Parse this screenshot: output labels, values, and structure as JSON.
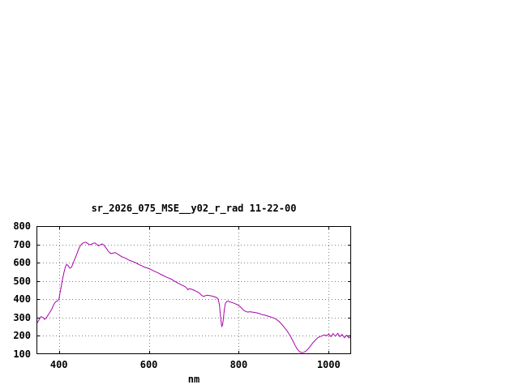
{
  "chart_data": {
    "type": "line",
    "title": "sr_2026_075_MSE__y02_r_rad 11-22-00",
    "xlabel": "nm",
    "ylabel": "",
    "xlim": [
      350,
      1050
    ],
    "ylim": [
      100,
      800
    ],
    "xticks": [
      400,
      600,
      800,
      1000
    ],
    "yticks": [
      100,
      200,
      300,
      400,
      500,
      600,
      700,
      800
    ],
    "grid": true,
    "legend": "none",
    "line_color": "#aa00aa",
    "grid_color": "#808080",
    "frame_color": "#000000",
    "x": [
      350,
      355,
      360,
      365,
      368,
      372,
      376,
      380,
      384,
      388,
      392,
      396,
      400,
      402,
      405,
      408,
      411,
      414,
      417,
      420,
      424,
      428,
      432,
      436,
      440,
      444,
      448,
      452,
      456,
      460,
      464,
      468,
      472,
      476,
      480,
      484,
      488,
      492,
      496,
      500,
      505,
      510,
      515,
      520,
      525,
      530,
      535,
      540,
      545,
      550,
      555,
      560,
      565,
      570,
      575,
      580,
      585,
      590,
      595,
      600,
      605,
      610,
      615,
      620,
      625,
      630,
      635,
      640,
      645,
      650,
      655,
      660,
      665,
      670,
      675,
      680,
      684,
      687,
      690,
      695,
      700,
      705,
      710,
      715,
      718,
      722,
      726,
      730,
      735,
      740,
      745,
      750,
      754,
      757,
      760,
      762,
      764,
      766,
      768,
      770,
      773,
      776,
      780,
      785,
      790,
      795,
      800,
      805,
      810,
      815,
      820,
      825,
      830,
      835,
      840,
      845,
      850,
      855,
      860,
      865,
      870,
      875,
      880,
      885,
      890,
      895,
      900,
      905,
      910,
      915,
      920,
      925,
      930,
      935,
      940,
      945,
      950,
      955,
      960,
      965,
      970,
      975,
      980,
      985,
      990,
      995,
      1000,
      1005,
      1010,
      1015,
      1020,
      1025,
      1030,
      1035,
      1040,
      1045,
      1050
    ],
    "y": [
      265,
      285,
      305,
      300,
      290,
      300,
      315,
      330,
      345,
      370,
      385,
      390,
      400,
      430,
      470,
      510,
      545,
      575,
      590,
      585,
      570,
      575,
      600,
      625,
      650,
      675,
      695,
      705,
      710,
      712,
      705,
      698,
      700,
      706,
      708,
      700,
      692,
      698,
      703,
      696,
      680,
      662,
      650,
      652,
      655,
      648,
      640,
      632,
      628,
      622,
      615,
      610,
      606,
      600,
      594,
      588,
      582,
      576,
      572,
      568,
      562,
      556,
      550,
      545,
      538,
      532,
      526,
      520,
      515,
      510,
      502,
      495,
      488,
      482,
      476,
      470,
      462,
      452,
      458,
      455,
      450,
      444,
      438,
      428,
      420,
      416,
      420,
      422,
      420,
      418,
      414,
      410,
      402,
      370,
      290,
      252,
      260,
      300,
      345,
      375,
      388,
      390,
      386,
      382,
      378,
      372,
      366,
      355,
      342,
      334,
      330,
      332,
      330,
      328,
      326,
      322,
      318,
      315,
      312,
      308,
      305,
      300,
      296,
      288,
      278,
      265,
      250,
      235,
      218,
      198,
      175,
      150,
      128,
      114,
      108,
      110,
      118,
      130,
      146,
      162,
      176,
      188,
      195,
      200,
      205,
      200,
      210,
      196,
      212,
      198,
      214,
      196,
      208,
      190,
      204,
      188,
      196
    ]
  }
}
